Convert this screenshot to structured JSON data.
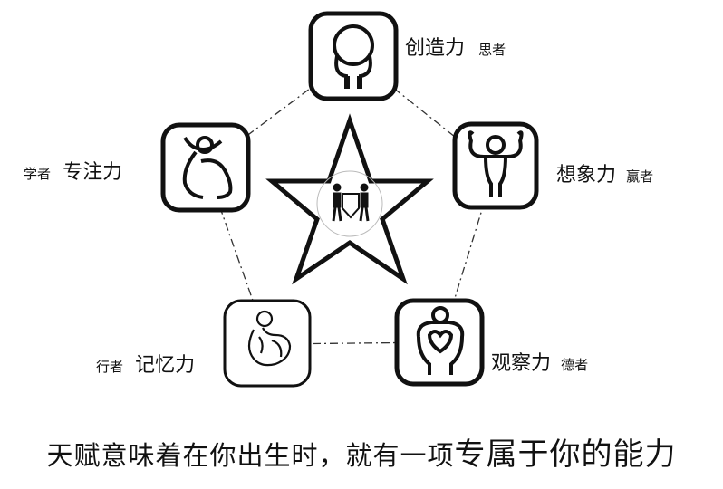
{
  "nodes": {
    "top": {
      "ability": "创造力",
      "role": "思者",
      "icon": "thinker-head-icon"
    },
    "right": {
      "ability": "想象力",
      "role": "赢者",
      "icon": "flexing-winner-icon"
    },
    "bottom_right": {
      "ability": "观察力",
      "role": "德者",
      "icon": "heart-holder-icon"
    },
    "bottom_left": {
      "ability": "记忆力",
      "role": "行者",
      "icon": "curled-figure-icon"
    },
    "left": {
      "ability": "专注力",
      "role": "学者",
      "icon": "leaping-figure-icon"
    }
  },
  "center": {
    "icon": "two-people-carrying-box-icon"
  },
  "caption": {
    "part1": "天赋意味着在你出生时，就有一项",
    "part2": "专属于你的能力"
  },
  "colors": {
    "stroke": "#111111",
    "background": "#ffffff"
  }
}
